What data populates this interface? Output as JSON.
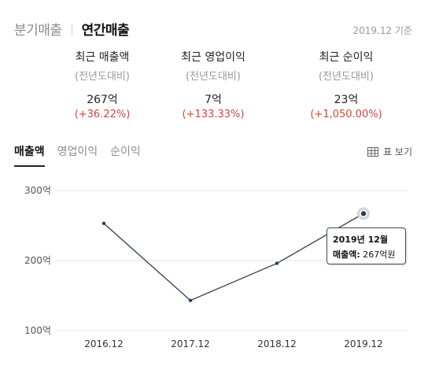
{
  "period_tabs": [
    {
      "label": "분기매출",
      "active": false
    },
    {
      "label": "연간매출",
      "active": true
    }
  ],
  "basis": "2019.12 기준",
  "summary": [
    {
      "title": "최근 매출액",
      "sub": "(전년도대비)",
      "value": "267억",
      "change": "(+36.22%)"
    },
    {
      "title": "최근 영업이익",
      "sub": "(전년도대비)",
      "value": "7억",
      "change": "(+133.33%)"
    },
    {
      "title": "최근 순이익",
      "sub": "(전년도대비)",
      "value": "23억",
      "change": "(+1,050.00%)"
    }
  ],
  "chart_tabs": [
    {
      "label": "매출액",
      "active": true
    },
    {
      "label": "영업이익",
      "active": false
    },
    {
      "label": "순이익",
      "active": false
    }
  ],
  "table_view_label": "표 보기",
  "tooltip": {
    "date": "2019년 12월",
    "label": "매출액:",
    "value": "267억원"
  },
  "colors": {
    "accent": "#2c3e50",
    "change": "#d0463b",
    "grid": "#e6e6e6"
  },
  "chart_data": {
    "type": "line",
    "categories": [
      "2016.12",
      "2017.12",
      "2018.12",
      "2019.12"
    ],
    "series": [
      {
        "values": [
          253,
          143,
          196,
          267
        ]
      }
    ],
    "y_ticks": [
      {
        "value": 100,
        "label": "100억"
      },
      {
        "value": 200,
        "label": "200억"
      },
      {
        "value": 300,
        "label": "300억"
      }
    ],
    "ylim": [
      100,
      300
    ],
    "grid": true,
    "highlight_index": 3
  }
}
